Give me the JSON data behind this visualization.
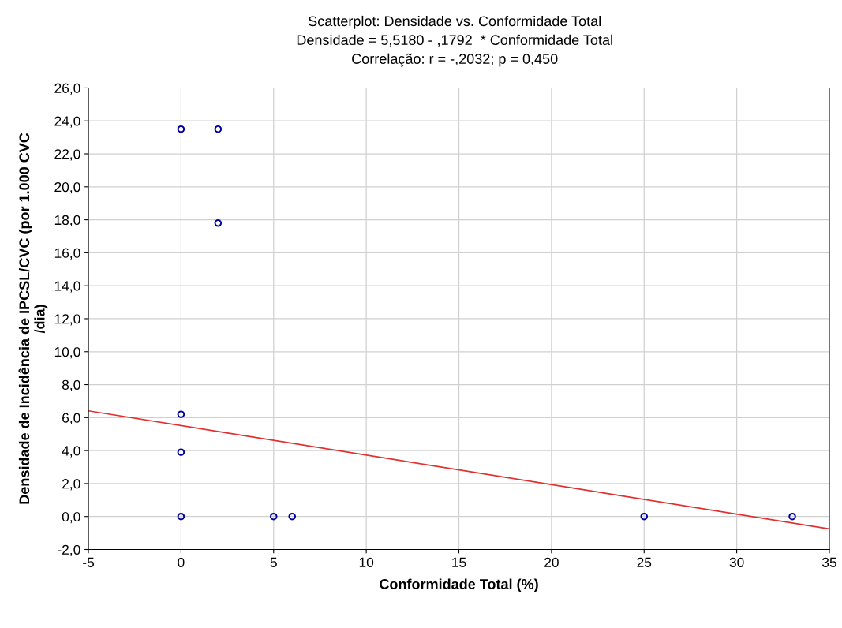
{
  "chart_data": {
    "type": "scatter",
    "title": "Scatterplot: Densidade vs. Conformidade Total",
    "subtitle": "Densidade = 5,5180 - ,1792  * Conformidade Total",
    "annotations": [
      "Correlação: r = -,2032; p = 0,450"
    ],
    "xlabel": "Conformidade Total (%)",
    "ylabel": "Densidade de Incidência de IPCSL/CVC (por 1.000 CVC\n/dia)",
    "series": [
      {
        "color": "#0000a0",
        "marker": "circle",
        "x": [
          0,
          2,
          2,
          0,
          0,
          0,
          5,
          6,
          25,
          33
        ],
        "values": [
          23.5,
          23.5,
          17.8,
          6.2,
          3.9,
          0,
          0,
          0,
          0,
          0
        ]
      },
      {
        "type": "line",
        "color": "#e03030",
        "marker": "none",
        "line_style": "solid",
        "x": [
          -5,
          35
        ],
        "values": [
          6.41,
          -0.75
        ]
      }
    ],
    "xlim": [
      -5,
      35
    ],
    "xticks": [
      -5,
      0,
      5,
      10,
      15,
      20,
      25,
      30,
      35
    ],
    "ylim": [
      -2,
      26
    ],
    "yticks": [
      {
        "value": -2,
        "label": "-2,0"
      },
      {
        "value": 0,
        "label": "0,0"
      },
      {
        "value": 2,
        "label": "2,0"
      },
      {
        "value": 4,
        "label": "4,0"
      },
      {
        "value": 6,
        "label": "6,0"
      },
      {
        "value": 8,
        "label": "8,0"
      },
      {
        "value": 10,
        "label": "10,0"
      },
      {
        "value": 12,
        "label": "12,0"
      },
      {
        "value": 14,
        "label": "14,0"
      },
      {
        "value": 16,
        "label": "16,0"
      },
      {
        "value": 18,
        "label": "18,0"
      },
      {
        "value": 20,
        "label": "20,0"
      },
      {
        "value": 22,
        "label": "22,0"
      },
      {
        "value": 24,
        "label": "24,0"
      },
      {
        "value": 26,
        "label": "26,0"
      }
    ],
    "grid": true
  }
}
